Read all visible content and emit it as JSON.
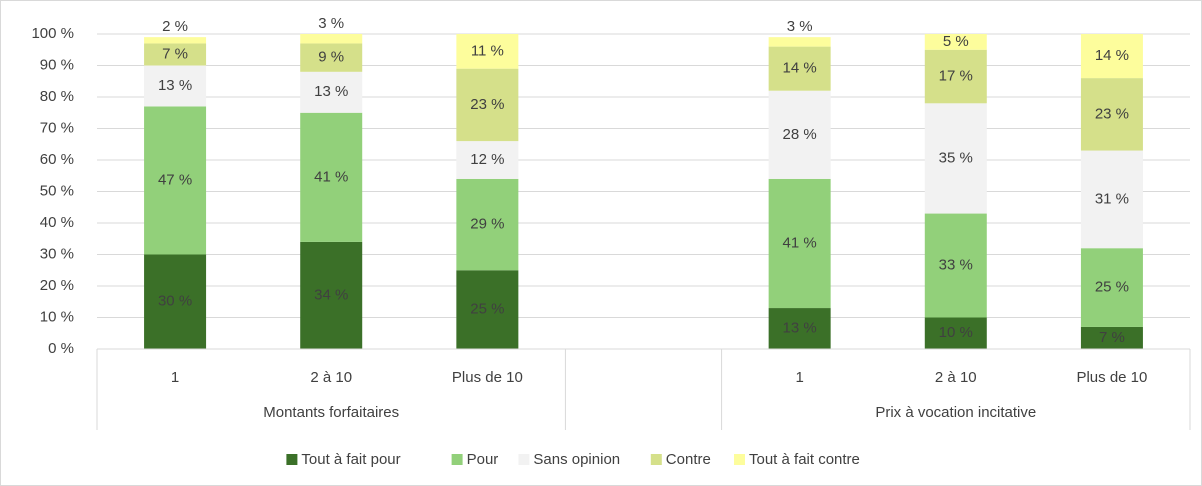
{
  "chart_data": {
    "type": "stacked-bar",
    "categories": [
      "1",
      "2 à 10",
      "Plus de 10",
      null,
      "1",
      "2 à 10",
      "Plus de 10"
    ],
    "groups": [
      "Montants forfaitaires",
      "Prix à vocation incitative"
    ],
    "series": [
      {
        "name": "Tout à fait pour",
        "color": "#3b7028",
        "values": [
          30,
          34,
          25,
          null,
          13,
          10,
          7
        ],
        "value_labels": [
          "30 %",
          "34 %",
          "25 %",
          null,
          "13 %",
          "10 %",
          "7 %"
        ]
      },
      {
        "name": "Pour",
        "color": "#92d07a",
        "values": [
          47,
          41,
          29,
          null,
          41,
          33,
          25
        ],
        "value_labels": [
          "47 %",
          "41 %",
          "29 %",
          null,
          "41 %",
          "33 %",
          "25 %"
        ]
      },
      {
        "name": "Sans opinion",
        "color": "#f2f2f2",
        "values": [
          13,
          13,
          12,
          null,
          28,
          35,
          31
        ],
        "value_labels": [
          "13 %",
          "13 %",
          "12 %",
          null,
          "28 %",
          "35 %",
          "31 %"
        ]
      },
      {
        "name": "Contre",
        "color": "#d5e08a",
        "values": [
          7,
          9,
          23,
          null,
          14,
          17,
          23
        ],
        "value_labels": [
          "7 %",
          "9 %",
          "23 %",
          null,
          "14 %",
          "17 %",
          "23 %"
        ]
      },
      {
        "name": "Tout à fait contre",
        "color": "#fdfd9c",
        "values": [
          2,
          3,
          11,
          null,
          3,
          5,
          14
        ],
        "value_labels": [
          "2 %",
          "3 %",
          "11 %",
          null,
          "3 %",
          "5 %",
          "14 %"
        ]
      }
    ],
    "ylim": [
      0,
      100
    ],
    "yticks": [
      {
        "value": 0,
        "label": "0 %"
      },
      {
        "value": 10,
        "label": "10 %"
      },
      {
        "value": 20,
        "label": "20 %"
      },
      {
        "value": 30,
        "label": "30 %"
      },
      {
        "value": 40,
        "label": "40 %"
      },
      {
        "value": 50,
        "label": "50 %"
      },
      {
        "value": 60,
        "label": "60 %"
      },
      {
        "value": 70,
        "label": "70 %"
      },
      {
        "value": 80,
        "label": "80 %"
      },
      {
        "value": 90,
        "label": "90 %"
      },
      {
        "value": 100,
        "label": "100 %"
      }
    ],
    "grid": true,
    "legend": "bottom"
  }
}
